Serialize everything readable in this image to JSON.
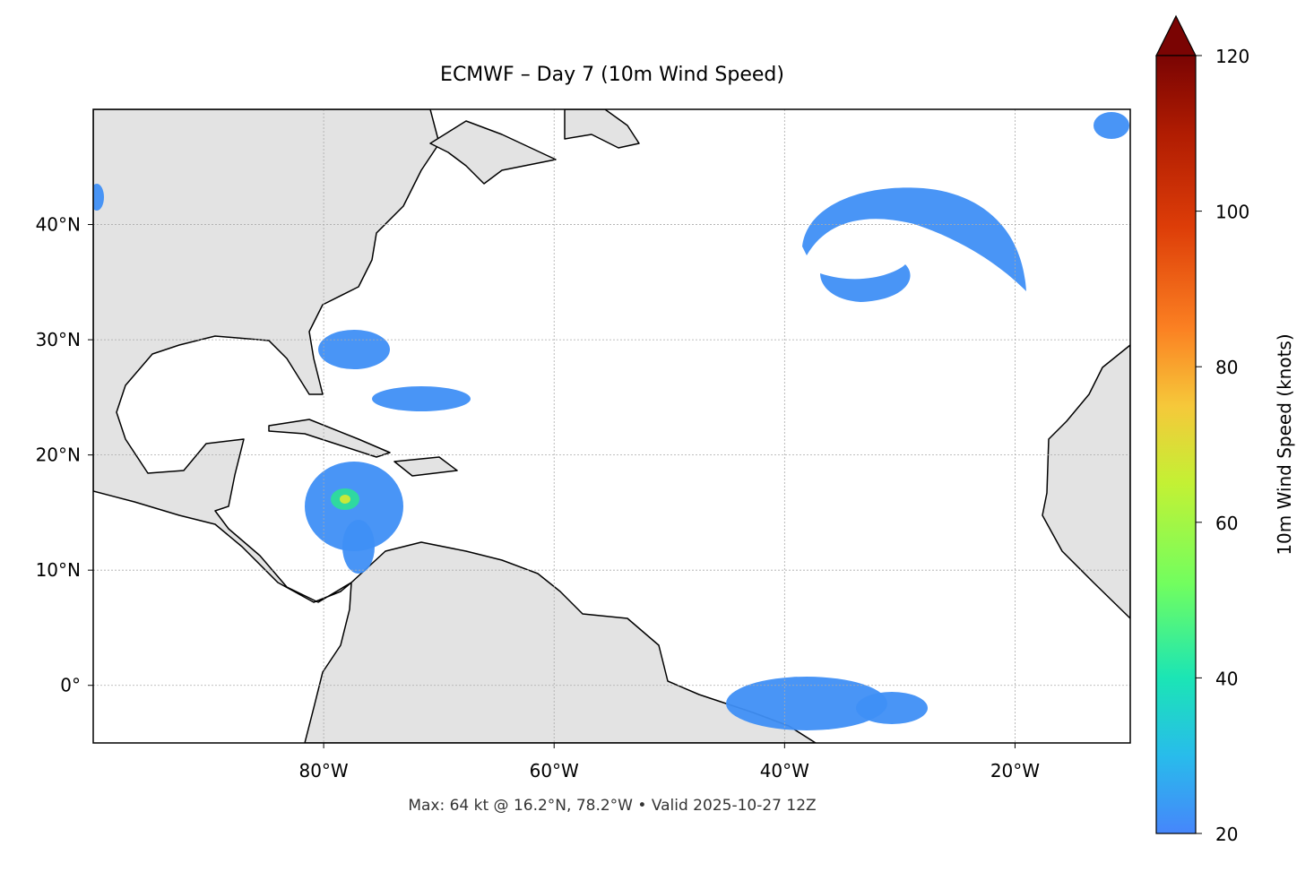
{
  "map": {
    "title": "ECMWF – Day 7 (10m Wind Speed)",
    "footer": "Max: 64 kt @ 16.2°N, 78.2°W • Valid 2025-10-27 12Z",
    "lon_range": [
      -100,
      -10
    ],
    "lat_range": [
      -5,
      50
    ],
    "lon_ticks": [
      {
        "value": -80,
        "label": "80°W"
      },
      {
        "value": -60,
        "label": "60°W"
      },
      {
        "value": -40,
        "label": "40°W"
      },
      {
        "value": -20,
        "label": "20°W"
      }
    ],
    "lat_ticks": [
      {
        "value": 0,
        "label": "0°"
      },
      {
        "value": 10,
        "label": "10°N"
      },
      {
        "value": 20,
        "label": "20°N"
      },
      {
        "value": 30,
        "label": "30°N"
      },
      {
        "value": 40,
        "label": "40°N"
      }
    ],
    "colorbar": {
      "label": "10m Wind Speed (knots)",
      "lim": [
        20,
        120
      ],
      "ticks": [
        20,
        40,
        60,
        80,
        100,
        120
      ]
    }
  }
}
